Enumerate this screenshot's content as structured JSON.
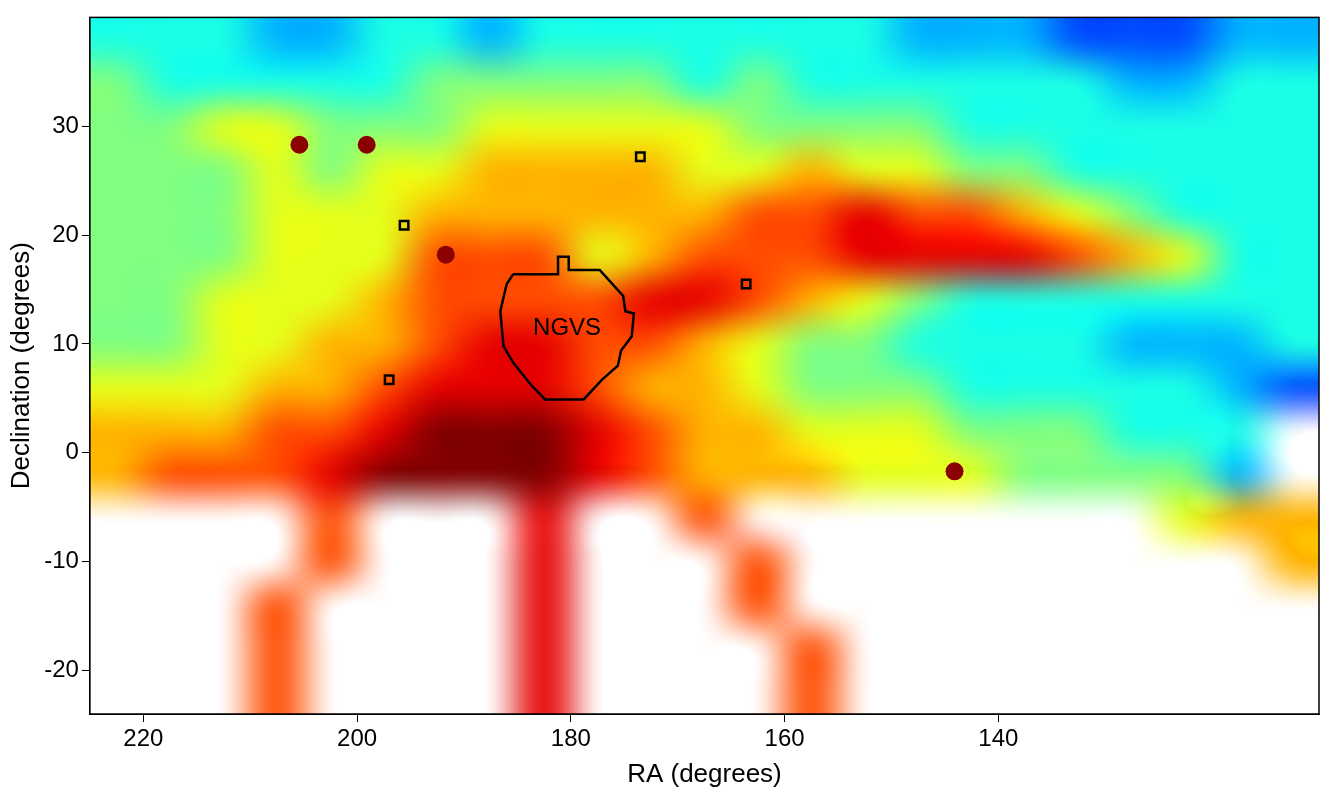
{
  "chart_data": {
    "type": "heatmap",
    "x_label": "RA (degrees)",
    "y_label": "Declination (degrees)",
    "xlim": [
      225,
      110
    ],
    "xticks": [
      220,
      200,
      180,
      160,
      140
    ],
    "ylim": [
      -24,
      40
    ],
    "yticks": [
      -20,
      -10,
      0,
      10,
      20,
      30
    ],
    "grid": false,
    "cells": {
      "zlim": [
        0,
        10
      ],
      "x_edges": [
        225,
        220,
        215,
        210,
        205,
        200,
        195,
        190,
        185,
        180,
        175,
        170,
        165,
        160,
        155,
        150,
        145,
        140,
        135,
        130,
        125,
        120,
        115,
        110
      ],
      "y_edges": [
        40,
        36,
        32,
        28,
        24,
        20,
        16,
        12,
        8,
        4,
        0,
        -4,
        -8,
        -12,
        -16,
        -20,
        -24
      ],
      "values": [
        [
          4,
          4,
          4,
          3,
          3,
          4,
          4,
          3,
          4,
          4,
          4,
          4,
          4,
          4,
          4,
          3,
          3,
          3,
          2,
          2,
          2,
          3,
          3
        ],
        [
          5,
          4,
          4,
          4,
          4,
          4,
          5,
          5,
          5,
          5,
          5,
          4,
          5,
          4,
          4,
          4,
          4,
          4,
          4,
          3,
          3,
          4,
          4
        ],
        [
          5,
          5,
          6,
          6,
          5,
          5,
          5,
          6,
          6,
          6,
          6,
          6,
          5,
          5,
          5,
          5,
          4,
          4,
          4,
          4,
          4,
          4,
          4
        ],
        [
          5,
          5,
          5,
          6,
          5,
          6,
          6,
          7,
          7,
          7,
          7,
          6,
          6,
          7,
          6,
          6,
          5,
          5,
          4,
          4,
          4,
          4,
          4
        ],
        [
          5,
          5,
          5,
          6,
          6,
          6,
          7,
          7,
          7,
          7,
          7,
          7,
          8,
          8,
          9,
          8,
          8,
          7,
          6,
          5,
          4,
          4,
          4
        ],
        [
          5,
          5,
          5,
          6,
          6,
          6,
          8,
          8,
          8,
          6,
          7,
          8,
          8,
          8,
          9,
          9,
          9,
          9,
          8,
          7,
          6,
          4,
          4
        ],
        [
          5,
          5,
          6,
          6,
          6,
          7,
          8,
          8,
          8,
          8,
          9,
          9,
          8,
          7,
          6,
          5,
          4,
          4,
          4,
          4,
          4,
          4,
          4
        ],
        [
          5,
          5,
          6,
          6,
          7,
          7,
          8,
          9,
          9,
          8,
          8,
          7,
          6,
          5,
          5,
          4,
          4,
          4,
          4,
          3,
          3,
          3,
          4
        ],
        [
          6,
          6,
          6,
          7,
          7,
          8,
          9,
          9,
          9,
          8,
          7,
          7,
          6,
          5,
          5,
          5,
          4,
          4,
          4,
          4,
          4,
          3,
          2
        ],
        [
          7,
          7,
          7,
          8,
          8,
          9,
          10,
          10,
          10,
          9,
          8,
          7,
          7,
          6,
          6,
          6,
          5,
          5,
          5,
          4,
          4,
          4,
          null
        ],
        [
          7,
          8,
          8,
          8,
          9,
          10,
          10,
          10,
          10,
          9,
          8,
          7,
          7,
          7,
          6,
          6,
          6,
          5,
          5,
          5,
          5,
          3,
          null
        ],
        [
          null,
          null,
          null,
          null,
          8,
          null,
          null,
          null,
          9,
          null,
          null,
          8,
          null,
          null,
          null,
          null,
          null,
          null,
          null,
          null,
          6,
          7,
          7
        ],
        [
          null,
          null,
          null,
          null,
          8,
          null,
          null,
          null,
          9,
          null,
          null,
          null,
          8,
          null,
          null,
          null,
          null,
          null,
          null,
          null,
          null,
          null,
          7
        ],
        [
          null,
          null,
          null,
          8,
          null,
          null,
          null,
          null,
          9,
          null,
          null,
          null,
          8,
          null,
          null,
          null,
          null,
          null,
          null,
          null,
          null,
          null,
          null
        ],
        [
          null,
          null,
          null,
          8,
          null,
          null,
          null,
          null,
          9,
          null,
          null,
          null,
          null,
          8,
          null,
          null,
          null,
          null,
          null,
          null,
          null,
          null,
          null
        ],
        [
          null,
          null,
          null,
          8,
          null,
          null,
          null,
          null,
          9,
          null,
          null,
          null,
          null,
          8,
          null,
          null,
          null,
          null,
          null,
          null,
          null,
          null,
          null
        ]
      ]
    },
    "regions": [
      {
        "name": "NGVS",
        "color": "#000000",
        "ra": [
          185.4,
          181.2,
          181.2,
          180.2,
          180.2,
          177.3,
          176.1,
          175.1,
          174.9,
          174.1,
          174.3,
          175.3,
          175.6,
          177.1,
          178.8,
          182.4,
          183.7,
          185.4,
          186.3,
          186.6,
          186.0,
          185.4
        ],
        "dec": [
          16.4,
          16.4,
          18.0,
          18.0,
          16.8,
          16.8,
          15.5,
          14.4,
          13.0,
          12.8,
          10.7,
          9.4,
          8.0,
          6.7,
          4.9,
          4.9,
          6.2,
          8.3,
          9.8,
          13.0,
          15.5,
          16.4
        ]
      }
    ],
    "fields": {
      "marker": "square",
      "color": "#000000",
      "ra": [
        173.5,
        195.6,
        163.6,
        197.0
      ],
      "dec": [
        27.2,
        20.9,
        15.5,
        6.7
      ]
    },
    "clusters": {
      "marker": "circle",
      "color": "#8b0000",
      "ra": [
        205.4,
        199.1,
        191.7,
        144.1
      ],
      "dec": [
        28.3,
        28.3,
        18.2,
        -1.7
      ]
    }
  }
}
